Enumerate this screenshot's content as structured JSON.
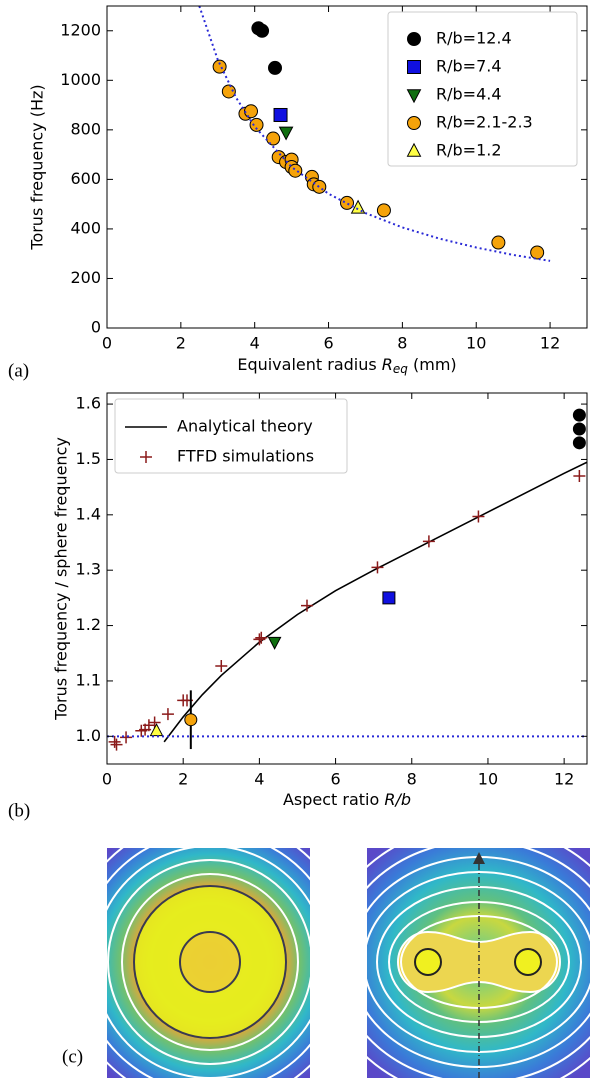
{
  "chart_data": [
    {
      "type": "scatter",
      "panel_label": "(a)",
      "xlabel": [
        {
          "text": "Equivalent radius "
        },
        {
          "text": "R",
          "style": "italic"
        },
        {
          "text": "eq",
          "style": "italic-sub"
        },
        {
          "text": " (mm)"
        }
      ],
      "ylabel": "Torus frequency (Hz)",
      "xlim": [
        0,
        13
      ],
      "ylim": [
        0,
        1300
      ],
      "xticks": [
        0,
        2,
        4,
        6,
        8,
        10,
        12
      ],
      "yticks": [
        0,
        200,
        400,
        600,
        800,
        1000,
        1200
      ],
      "legend": "upper right",
      "series": [
        {
          "name": "R/b=12.4",
          "marker": "circle",
          "color": "#000000",
          "x": [
            4.1,
            4.2,
            4.55
          ],
          "values": [
            1210,
            1200,
            1050
          ]
        },
        {
          "name": "R/b=7.4",
          "marker": "square",
          "color": "#1010e0",
          "x": [
            4.7
          ],
          "values": [
            860
          ]
        },
        {
          "name": "R/b=4.4",
          "marker": "triangle-down",
          "color": "#0f6e0f",
          "x": [
            4.85
          ],
          "values": [
            790
          ]
        },
        {
          "name": "R/b=2.1-2.3",
          "marker": "circle",
          "color": "#f5a30a",
          "x": [
            3.05,
            3.3,
            3.75,
            3.9,
            4.05,
            4.5,
            4.65,
            4.85,
            5.0,
            5.0,
            5.1,
            5.55,
            5.6,
            5.75,
            6.5,
            7.5,
            10.6,
            11.65
          ],
          "values": [
            1055,
            955,
            865,
            875,
            820,
            765,
            690,
            670,
            680,
            650,
            635,
            610,
            580,
            570,
            505,
            475,
            345,
            305
          ]
        },
        {
          "name": "R/b=1.2",
          "marker": "triangle-up",
          "color": "#ffff44",
          "x": [
            6.8
          ],
          "values": [
            485
          ]
        },
        {
          "marker": "line",
          "style": "dotted",
          "color": "#2a2ad6",
          "x": [
            2.5,
            3,
            3.5,
            4,
            5,
            6,
            7,
            8,
            9,
            10,
            11,
            12
          ],
          "values": [
            1300,
            1083,
            929,
            813,
            650,
            542,
            464,
            406,
            361,
            325,
            295,
            271
          ]
        }
      ]
    },
    {
      "type": "scatter",
      "panel_label": "(b)",
      "xlabel": [
        {
          "text": "Aspect ratio "
        },
        {
          "text": "R/b",
          "style": "italic"
        }
      ],
      "ylabel": "Torus frequency / sphere frequency",
      "xlim": [
        0,
        12.6
      ],
      "ylim": [
        0.95,
        1.62
      ],
      "xticks": [
        0,
        2,
        4,
        6,
        8,
        10,
        12
      ],
      "yticks": [
        {
          "value": 1,
          "label": "1.0"
        },
        1.1,
        1.2,
        1.3,
        1.4,
        1.5,
        1.6
      ],
      "legend": "upper left",
      "series": [
        {
          "name": "Analytical theory",
          "marker": "line",
          "style": "solid",
          "color": "#000000",
          "x": [
            1.5,
            2,
            2.5,
            3,
            4,
            5,
            6,
            7,
            8,
            9,
            10,
            11,
            12,
            12.6
          ],
          "values": [
            0.99,
            1.035,
            1.075,
            1.11,
            1.17,
            1.22,
            1.263,
            1.3,
            1.335,
            1.37,
            1.405,
            1.44,
            1.475,
            1.495
          ]
        },
        {
          "name": "FTFD simulations",
          "marker": "plus",
          "color": "#8b1a1a",
          "x": [
            0.2,
            0.25,
            0.5,
            0.9,
            1.0,
            1.1,
            1.25,
            1.6,
            2.0,
            2.1,
            3.0,
            4.0,
            4.05,
            5.25,
            7.1,
            8.45,
            9.75,
            12.4
          ],
          "values": [
            0.99,
            0.985,
            0.998,
            1.01,
            1.012,
            1.02,
            1.025,
            1.04,
            1.065,
            1.065,
            1.127,
            1.175,
            1.178,
            1.236,
            1.305,
            1.352,
            1.397,
            1.47
          ]
        },
        {
          "marker": "circle",
          "color": "#000000",
          "x": [
            12.4,
            12.4,
            12.4
          ],
          "values": [
            1.58,
            1.555,
            1.53
          ]
        },
        {
          "marker": "square",
          "color": "#1010e0",
          "x": [
            7.4
          ],
          "values": [
            1.25
          ]
        },
        {
          "marker": "triangle-down",
          "color": "#0f6e0f",
          "x": [
            4.4
          ],
          "values": [
            1.17
          ]
        },
        {
          "marker": "circle",
          "color": "#f5a30a",
          "x": [
            2.2
          ],
          "values": [
            1.03
          ],
          "yerr": [
            0.053
          ]
        },
        {
          "marker": "triangle-up",
          "color": "#ffff44",
          "x": [
            1.3
          ],
          "values": [
            1.01
          ]
        },
        {
          "marker": "hline",
          "style": "dotted",
          "color": "#2a2ad6",
          "values": [
            1
          ]
        }
      ]
    }
  ],
  "panel_c": {
    "label": "(c)"
  }
}
